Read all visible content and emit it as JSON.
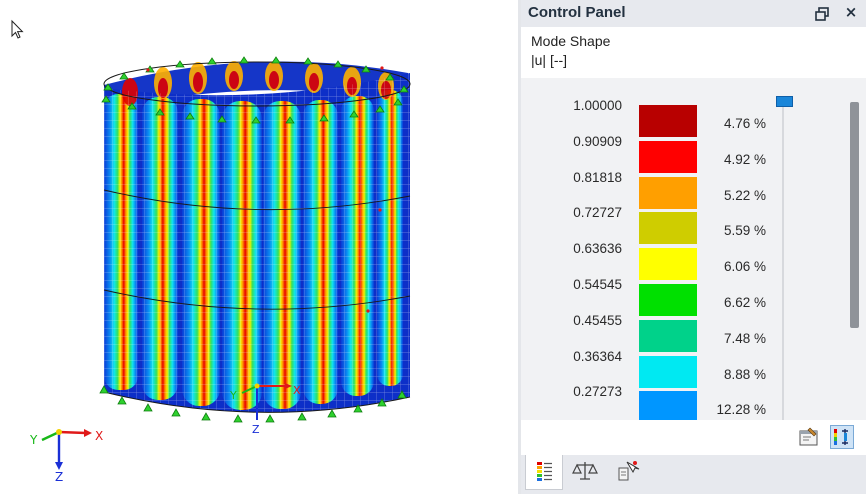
{
  "panel": {
    "title": "Control Panel",
    "restore_icon": "restore-window-icon",
    "close_label": "×",
    "result_title": "Mode Shape",
    "result_unit": "|u| [--]"
  },
  "legend": {
    "values": [
      "1.00000",
      "0.90909",
      "0.81818",
      "0.72727",
      "0.63636",
      "0.54545",
      "0.45455",
      "0.36364",
      "0.27273"
    ],
    "colors": [
      "#b80000",
      "#ff0000",
      "#ff9f00",
      "#cfcd00",
      "#ffff00",
      "#00e000",
      "#00d28a",
      "#00e9f2",
      "#0096ff"
    ],
    "percentages": [
      "4.76 %",
      "4.92 %",
      "5.22 %",
      "5.59 %",
      "6.06 %",
      "6.62 %",
      "7.48 %",
      "8.88 %",
      "12.28 %"
    ]
  },
  "viewport": {
    "axes_main": {
      "x": "X",
      "y": "Y",
      "z": "Z"
    },
    "axes_model": {
      "x": "X",
      "y": "Y",
      "z": "Z"
    },
    "axis_colors": {
      "x": "#e01919",
      "y": "#18b818",
      "z": "#1a2fd6"
    }
  },
  "toolbar": {
    "icons": [
      "legend-settings-icon",
      "color-scale-icon"
    ]
  },
  "tabs": [
    {
      "name": "legend-tab",
      "icon": "color-legend-icon",
      "active": true
    },
    {
      "name": "balance-tab",
      "icon": "scales-icon",
      "active": false
    },
    {
      "name": "filter-tab",
      "icon": "select-filter-icon",
      "active": false
    }
  ]
}
